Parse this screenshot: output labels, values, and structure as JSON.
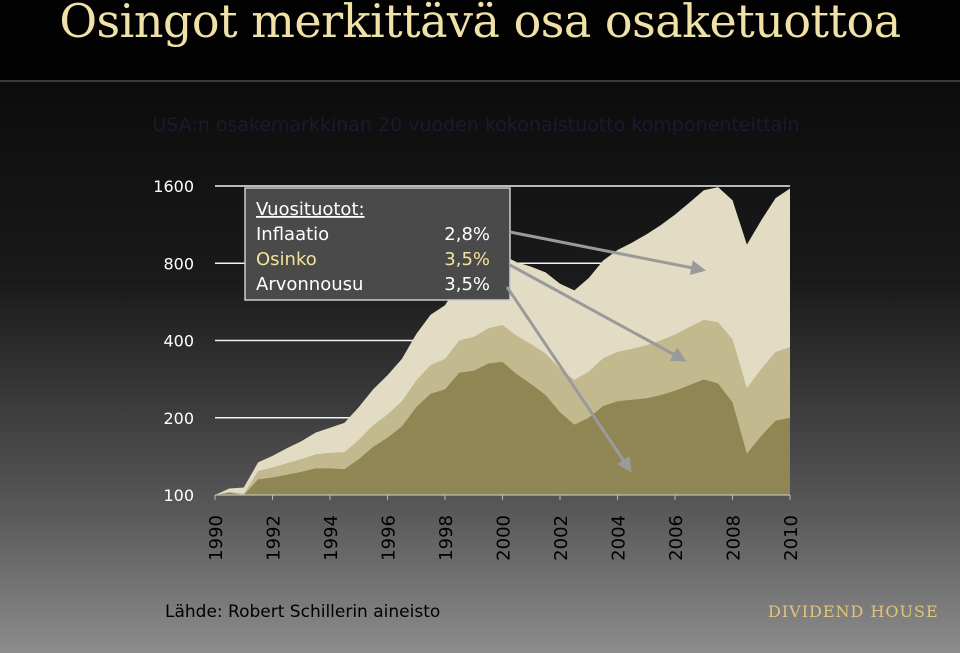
{
  "slide": {
    "title": "Osingot merkittävä osa osaketuottoa",
    "source": "Lähde: Robert Schillerin aineisto",
    "brand": "DIVIDEND HOUSE"
  },
  "legend_box": {
    "heading": "Vuosituotot:",
    "rows": [
      {
        "label": "Inflaatio",
        "value": "2,8%"
      },
      {
        "label": "Osinko",
        "value": "3,5%"
      },
      {
        "label": "Arvonnousu",
        "value": "3,5%"
      }
    ]
  },
  "colors": {
    "title": "#f0e2a6",
    "band_top": "#e3dcc4",
    "band_middle": "#c3b98e",
    "band_bottom": "#8f8653",
    "osinko_text": "#f3e39a",
    "arrow": "#9a9a9a",
    "brand": "#e0c67a"
  },
  "chart_data": {
    "type": "area",
    "title": "USA:n osakemarkkinan 20 vuoden kokonaistuotto komponenteittain",
    "y_scale": "log",
    "ylim": [
      100,
      1600
    ],
    "yticks": [
      {
        "value": 100,
        "label": "100"
      },
      {
        "value": 200,
        "label": "200"
      },
      {
        "value": 400,
        "label": "400"
      },
      {
        "value": 800,
        "label": "800"
      },
      {
        "value": 1600,
        "label": "1600"
      }
    ],
    "xlim": [
      1990,
      2010
    ],
    "xticks": [
      "1990",
      "1992",
      "1994",
      "1996",
      "1998",
      "2000",
      "2002",
      "2004",
      "2006",
      "2008",
      "2010"
    ],
    "grid": true,
    "x": [
      1990.0,
      1990.5,
      1991.0,
      1991.5,
      1992.0,
      1992.5,
      1993.0,
      1993.5,
      1994.0,
      1994.5,
      1995.0,
      1995.5,
      1996.0,
      1996.5,
      1997.0,
      1997.5,
      1998.0,
      1998.5,
      1999.0,
      1999.5,
      2000.0,
      2000.5,
      2001.0,
      2001.5,
      2002.0,
      2002.5,
      2003.0,
      2003.5,
      2004.0,
      2004.5,
      2005.0,
      2005.5,
      2006.0,
      2006.5,
      2007.0,
      2007.5,
      2008.0,
      2008.5,
      2009.0,
      2009.5,
      2010.0
    ],
    "series": [
      {
        "values": [
          100,
          102,
          100,
          115,
          117,
          120,
          123,
          127,
          127,
          126,
          138,
          154,
          167,
          185,
          220,
          248,
          258,
          300,
          305,
          325,
          330,
          295,
          270,
          245,
          210,
          188,
          200,
          222,
          232,
          235,
          238,
          245,
          255,
          268,
          282,
          272,
          230,
          145,
          170,
          195,
          200
        ]
      },
      {
        "values": [
          100,
          103,
          101,
          124,
          128,
          133,
          138,
          144,
          146,
          147,
          164,
          187,
          206,
          232,
          280,
          321,
          339,
          401,
          413,
          446,
          460,
          417,
          387,
          356,
          310,
          281,
          303,
          341,
          361,
          371,
          383,
          400,
          422,
          451,
          481,
          472,
          405,
          261,
          310,
          361,
          377
        ]
      },
      {
        "values": [
          100,
          106,
          107,
          134,
          142,
          152,
          162,
          175,
          183,
          191,
          220,
          258,
          293,
          339,
          424,
          504,
          549,
          672,
          716,
          802,
          860,
          807,
          775,
          737,
          666,
          627,
          701,
          819,
          901,
          962,
          1035,
          1125,
          1238,
          1379,
          1540,
          1584,
          1408,
          946,
          1177,
          1436,
          1565
        ]
      }
    ]
  }
}
